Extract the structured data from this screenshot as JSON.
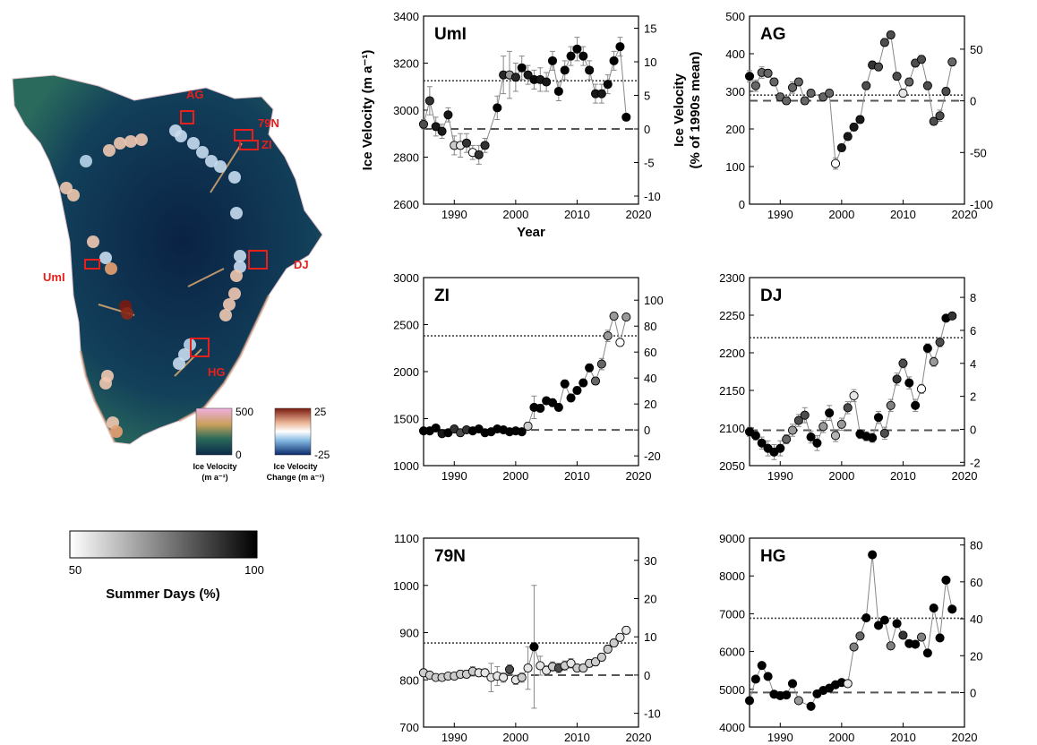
{
  "map": {
    "labels": [
      "AG",
      "79N",
      "ZI",
      "UmI",
      "DJ",
      "HG"
    ],
    "legend_velocity": {
      "title_line1": "Ice Velocity",
      "title_line2": "(m a⁻¹)",
      "max": "500",
      "min": "0"
    },
    "legend_change": {
      "title_line1": "Ice Velocity",
      "title_line2": "Change (m a⁻¹)",
      "max": "25",
      "min": "-25"
    },
    "colors": {
      "ice_dark": "#0b2a4a",
      "ice_mid": "#1f5a5e",
      "fast_flow": "#e8a070",
      "marker_red": "#e8201c"
    }
  },
  "colorbar": {
    "min_label": "50",
    "max_label": "100",
    "title": "Summer Days (%)"
  },
  "chart_data": [
    {
      "type": "scatter",
      "title": "UmI",
      "ylabel": "Ice Velocity (m a⁻¹)",
      "ylabel2": "Ice Velocity",
      "ylabel2_line2": "(% of 1990s mean)",
      "xlabel": "Year",
      "xlim": [
        1985,
        2020
      ],
      "ylim": [
        2600,
        3400
      ],
      "xticks": [
        1990,
        2000,
        2010,
        2020
      ],
      "yticks": [
        2600,
        2800,
        3000,
        3200,
        3400
      ],
      "y2lim": [
        -11.2,
        16.8
      ],
      "y2ticks": [
        -10,
        -5,
        0,
        5,
        10,
        15
      ],
      "baseline": 2920,
      "dotted": 3125,
      "x": [
        1985,
        1986,
        1987,
        1988,
        1989,
        1990,
        1991,
        1992,
        1993,
        1994,
        1995,
        1997,
        1998,
        1999,
        2000,
        2001,
        2002,
        2003,
        2004,
        2005,
        2006,
        2007,
        2008,
        2009,
        2010,
        2011,
        2012,
        2013,
        2014,
        2015,
        2016,
        2017,
        2018
      ],
      "y": [
        2940,
        3040,
        2930,
        2910,
        2980,
        2850,
        2850,
        2860,
        2820,
        2810,
        2850,
        3010,
        3150,
        3150,
        3140,
        3180,
        3150,
        3130,
        3130,
        3120,
        3210,
        3080,
        3170,
        3230,
        3260,
        3230,
        3170,
        3070,
        3070,
        3110,
        3210,
        3270,
        2970
      ],
      "summer_pct": [
        85,
        90,
        95,
        95,
        95,
        60,
        55,
        90,
        50,
        90,
        90,
        100,
        92,
        70,
        92,
        100,
        95,
        98,
        95,
        95,
        100,
        100,
        100,
        100,
        100,
        98,
        98,
        95,
        95,
        98,
        100,
        100,
        100
      ],
      "err": [
        20,
        60,
        40,
        30,
        30,
        40,
        50,
        40,
        30,
        40,
        30,
        50,
        80,
        100,
        60,
        50,
        40,
        40,
        50,
        40,
        40,
        40,
        40,
        40,
        50,
        40,
        40,
        40,
        40,
        40,
        40,
        40,
        0
      ]
    },
    {
      "type": "scatter",
      "title": "AG",
      "xlim": [
        1985,
        2020
      ],
      "ylim": [
        0,
        500
      ],
      "xticks": [
        1990,
        2000,
        2010,
        2020
      ],
      "yticks": [
        0,
        100,
        200,
        300,
        400,
        500
      ],
      "y2lim": [
        -100,
        82
      ],
      "y2ticks": [
        -100,
        -50,
        0,
        50
      ],
      "baseline": 275,
      "dotted": 290,
      "x": [
        1985,
        1986,
        1987,
        1988,
        1989,
        1990,
        1991,
        1992,
        1993,
        1994,
        1995,
        1997,
        1998,
        1999,
        2000,
        2001,
        2002,
        2003,
        2004,
        2005,
        2006,
        2007,
        2008,
        2009,
        2010,
        2011,
        2012,
        2013,
        2014,
        2015,
        2016,
        2017,
        2018
      ],
      "y": [
        340,
        315,
        350,
        348,
        325,
        285,
        275,
        310,
        325,
        275,
        295,
        285,
        295,
        108,
        150,
        180,
        205,
        225,
        315,
        370,
        365,
        430,
        450,
        340,
        295,
        325,
        375,
        385,
        315,
        220,
        235,
        300,
        378
      ],
      "summer_pct": [
        100,
        80,
        80,
        80,
        80,
        80,
        80,
        80,
        80,
        80,
        80,
        80,
        80,
        50,
        95,
        95,
        95,
        95,
        85,
        90,
        85,
        85,
        85,
        85,
        55,
        80,
        85,
        85,
        85,
        85,
        85,
        85,
        80
      ],
      "err": [
        15,
        15,
        15,
        10,
        10,
        10,
        10,
        15,
        10,
        10,
        10,
        10,
        10,
        15,
        10,
        10,
        10,
        10,
        10,
        10,
        10,
        10,
        10,
        10,
        10,
        10,
        10,
        10,
        10,
        10,
        15,
        10,
        10
      ]
    },
    {
      "type": "scatter",
      "title": "ZI",
      "xlim": [
        1985,
        2020
      ],
      "ylim": [
        1000,
        3000
      ],
      "xticks": [
        1990,
        2000,
        2010,
        2020
      ],
      "yticks": [
        1000,
        1500,
        2000,
        2500,
        3000
      ],
      "y2lim": [
        -27.5,
        117.4
      ],
      "y2ticks": [
        -20,
        0,
        20,
        40,
        60,
        80,
        100
      ],
      "baseline": 1380,
      "dotted": 2380,
      "x": [
        1985,
        1986,
        1987,
        1988,
        1989,
        1990,
        1991,
        1992,
        1993,
        1994,
        1995,
        1996,
        1997,
        1998,
        1999,
        2000,
        2001,
        2002,
        2003,
        2004,
        2005,
        2006,
        2007,
        2008,
        2009,
        2010,
        2011,
        2012,
        2013,
        2014,
        2015,
        2016,
        2017,
        2018
      ],
      "y": [
        1370,
        1370,
        1400,
        1340,
        1350,
        1390,
        1350,
        1380,
        1370,
        1390,
        1350,
        1360,
        1390,
        1380,
        1360,
        1370,
        1360,
        1420,
        1620,
        1610,
        1690,
        1670,
        1620,
        1870,
        1720,
        1800,
        1880,
        2040,
        1900,
        2080,
        2380,
        2590,
        2310,
        2580
      ],
      "summer_pct": [
        100,
        100,
        100,
        95,
        100,
        90,
        85,
        90,
        100,
        100,
        100,
        100,
        100,
        100,
        100,
        100,
        100,
        60,
        100,
        100,
        100,
        100,
        100,
        100,
        100,
        100,
        100,
        100,
        80,
        80,
        70,
        70,
        50,
        70
      ],
      "err": [
        20,
        20,
        20,
        20,
        20,
        20,
        20,
        20,
        20,
        20,
        20,
        20,
        20,
        20,
        20,
        20,
        20,
        40,
        120,
        40,
        30,
        40,
        40,
        40,
        40,
        40,
        40,
        40,
        40,
        60,
        60,
        40,
        40,
        30
      ]
    },
    {
      "type": "scatter",
      "title": "DJ",
      "xlim": [
        1985,
        2020
      ],
      "ylim": [
        2050,
        2300
      ],
      "xticks": [
        1990,
        2000,
        2010,
        2020
      ],
      "yticks": [
        2050,
        2100,
        2150,
        2200,
        2250,
        2300
      ],
      "y2lim": [
        -2.2,
        9.2
      ],
      "y2ticks": [
        -2,
        0,
        2,
        4,
        6,
        8
      ],
      "baseline": 2097,
      "dotted": 2220,
      "x": [
        1985,
        1986,
        1987,
        1988,
        1989,
        1990,
        1991,
        1992,
        1993,
        1994,
        1995,
        1996,
        1997,
        1998,
        1999,
        2000,
        2001,
        2002,
        2003,
        2004,
        2005,
        2006,
        2007,
        2008,
        2009,
        2010,
        2011,
        2012,
        2013,
        2014,
        2015,
        2016,
        2017,
        2018
      ],
      "y": [
        2095,
        2090,
        2080,
        2073,
        2068,
        2073,
        2085,
        2097,
        2110,
        2117,
        2088,
        2080,
        2102,
        2120,
        2090,
        2105,
        2127,
        2143,
        2092,
        2089,
        2087,
        2114,
        2093,
        2130,
        2165,
        2186,
        2160,
        2130,
        2152,
        2206,
        2188,
        2214,
        2246,
        2249
      ],
      "summer_pct": [
        100,
        100,
        100,
        100,
        100,
        100,
        80,
        70,
        85,
        85,
        100,
        100,
        70,
        100,
        65,
        70,
        85,
        55,
        100,
        100,
        100,
        100,
        85,
        75,
        90,
        85,
        100,
        100,
        50,
        100,
        70,
        85,
        100,
        90
      ],
      "err": [
        6,
        6,
        8,
        10,
        10,
        10,
        6,
        8,
        8,
        10,
        8,
        10,
        8,
        10,
        8,
        8,
        8,
        8,
        6,
        6,
        6,
        8,
        8,
        8,
        8,
        6,
        8,
        8,
        6,
        6,
        6,
        6,
        4,
        4
      ]
    },
    {
      "type": "scatter",
      "title": "79N",
      "xlim": [
        1985,
        2020
      ],
      "ylim": [
        700,
        1100
      ],
      "xticks": [
        1990,
        2000,
        2010,
        2020
      ],
      "yticks": [
        700,
        800,
        900,
        1000,
        1100
      ],
      "y2lim": [
        -13.6,
        35.8
      ],
      "y2ticks": [
        -10,
        0,
        10,
        20,
        30
      ],
      "baseline": 810,
      "dotted": 878,
      "x": [
        1985,
        1986,
        1987,
        1988,
        1989,
        1990,
        1991,
        1992,
        1993,
        1994,
        1995,
        1996,
        1997,
        1998,
        1999,
        2000,
        2001,
        2002,
        2003,
        2004,
        2005,
        2006,
        2007,
        2008,
        2009,
        2010,
        2011,
        2012,
        2013,
        2014,
        2015,
        2016,
        2017,
        2018
      ],
      "y": [
        815,
        810,
        805,
        805,
        808,
        808,
        812,
        812,
        818,
        815,
        815,
        805,
        808,
        805,
        822,
        800,
        805,
        825,
        870,
        830,
        820,
        828,
        825,
        830,
        835,
        825,
        825,
        835,
        838,
        848,
        865,
        878,
        890,
        905
      ],
      "summer_pct": [
        60,
        60,
        60,
        60,
        60,
        60,
        60,
        60,
        60,
        55,
        55,
        55,
        55,
        55,
        85,
        55,
        60,
        55,
        100,
        55,
        55,
        60,
        85,
        60,
        55,
        60,
        60,
        60,
        60,
        60,
        60,
        60,
        55,
        55
      ],
      "err": [
        8,
        6,
        6,
        6,
        6,
        6,
        8,
        8,
        10,
        8,
        8,
        30,
        20,
        10,
        10,
        10,
        10,
        45,
        130,
        20,
        10,
        10,
        10,
        10,
        10,
        8,
        8,
        8,
        8,
        8,
        8,
        8,
        8,
        8
      ]
    },
    {
      "type": "scatter",
      "title": "HG",
      "xlim": [
        1985,
        2020
      ],
      "ylim": [
        4000,
        9000
      ],
      "xticks": [
        1990,
        2000,
        2010,
        2020
      ],
      "yticks": [
        4000,
        5000,
        6000,
        7000,
        8000,
        9000
      ],
      "y2lim": [
        -18.7,
        83.7
      ],
      "y2ticks": [
        0,
        20,
        40,
        60,
        80
      ],
      "baseline": 4915,
      "dotted": 6880,
      "x": [
        1985,
        1986,
        1987,
        1988,
        1989,
        1990,
        1991,
        1992,
        1993,
        1995,
        1996,
        1997,
        1998,
        1999,
        2000,
        2001,
        2002,
        2003,
        2004,
        2005,
        2006,
        2007,
        2008,
        2009,
        2010,
        2011,
        2012,
        2013,
        2014,
        2015,
        2016,
        2017,
        2018
      ],
      "y": [
        4700,
        5270,
        5630,
        5340,
        4870,
        4830,
        4850,
        5150,
        4700,
        4550,
        4880,
        4970,
        5030,
        5120,
        5180,
        5150,
        6120,
        6410,
        6890,
        8560,
        6690,
        6830,
        6150,
        6740,
        6430,
        6210,
        6190,
        6380,
        5960,
        7150,
        6360,
        7890,
        7120
      ],
      "summer_pct": [
        100,
        100,
        100,
        100,
        100,
        100,
        100,
        100,
        70,
        100,
        100,
        100,
        100,
        100,
        100,
        55,
        75,
        80,
        100,
        100,
        100,
        100,
        75,
        100,
        90,
        100,
        100,
        75,
        100,
        100,
        100,
        100,
        100
      ],
      "err": [
        60,
        40,
        40,
        40,
        40,
        40,
        40,
        40,
        40,
        40,
        40,
        40,
        40,
        40,
        40,
        40,
        60,
        60,
        60,
        60,
        60,
        60,
        60,
        60,
        60,
        60,
        60,
        60,
        60,
        60,
        60,
        60,
        60
      ]
    }
  ]
}
